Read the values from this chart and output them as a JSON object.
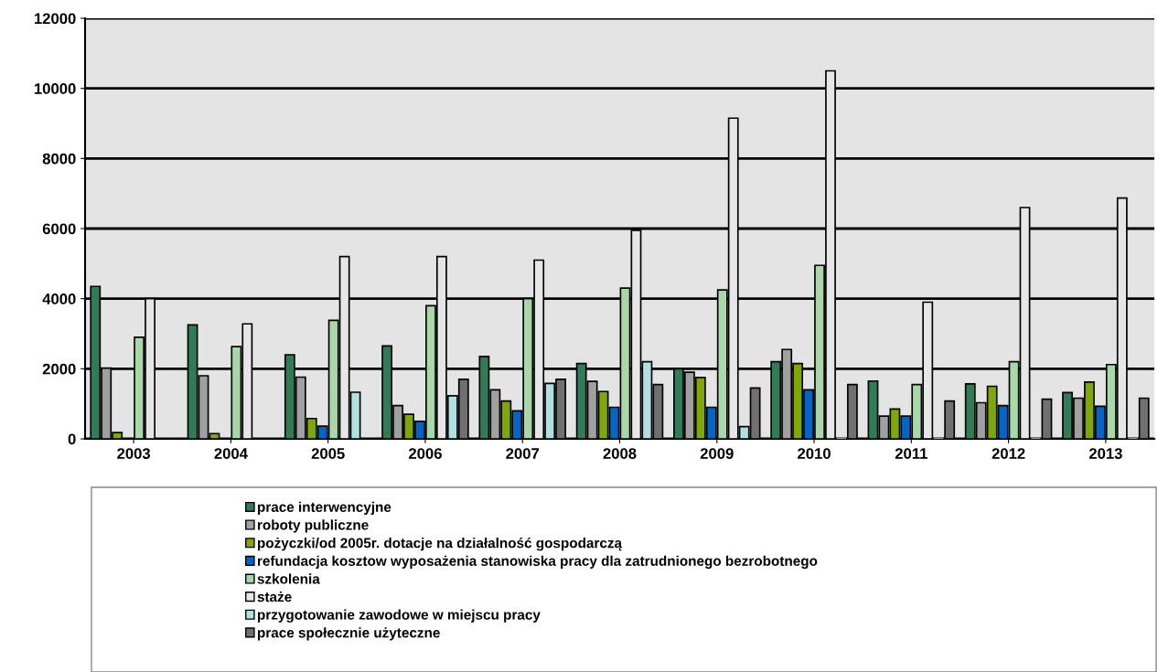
{
  "chart_data": {
    "type": "bar",
    "categories": [
      "2003",
      "2004",
      "2005",
      "2006",
      "2007",
      "2008",
      "2009",
      "2010",
      "2011",
      "2012",
      "2013"
    ],
    "series": [
      {
        "name": "prace interwencyjne",
        "color": "#2e7d57",
        "values": [
          4350,
          3250,
          2400,
          2650,
          2350,
          2150,
          2000,
          2200,
          1650,
          1570,
          1320
        ]
      },
      {
        "name": "roboty publiczne",
        "color": "#a0a0a0",
        "values": [
          2020,
          1800,
          1760,
          950,
          1400,
          1640,
          1900,
          2550,
          650,
          1030,
          1160
        ]
      },
      {
        "name": "pożyczki/od 2005r. dotacje na działalność gospodarczą",
        "color": "#7fa800",
        "values": [
          180,
          150,
          580,
          700,
          1080,
          1350,
          1750,
          2150,
          850,
          1500,
          1620
        ]
      },
      {
        "name": "refundacja kosztow wyposażenia stanowiska pracy dla zatrudnionego bezrobotnego",
        "color": "#0066cc",
        "values": [
          null,
          null,
          360,
          500,
          800,
          900,
          900,
          1400,
          650,
          950,
          930
        ]
      },
      {
        "name": "szkolenia",
        "color": "#a8d8a8",
        "values": [
          2900,
          2630,
          3380,
          3800,
          4000,
          4300,
          4250,
          4950,
          1550,
          2200,
          2120
        ]
      },
      {
        "name": "staże",
        "color": "#e6e6e6",
        "values": [
          4000,
          3280,
          5200,
          5200,
          5100,
          5950,
          9150,
          10500,
          3900,
          6600,
          6870
        ]
      },
      {
        "name": "przygotowanie zawodowe w miejscu pracy",
        "color": "#b0e0e0",
        "values": [
          null,
          null,
          1330,
          1230,
          1580,
          2200,
          350,
          0,
          0,
          0,
          0
        ]
      },
      {
        "name": "prace społecznie użyteczne",
        "color": "#707070",
        "values": [
          null,
          null,
          null,
          1700,
          1700,
          1550,
          1450,
          1550,
          1080,
          1130,
          1160
        ]
      }
    ],
    "ylim": [
      0,
      12000
    ],
    "yticks": [
      0,
      2000,
      4000,
      6000,
      8000,
      10000,
      12000
    ],
    "grid": "y",
    "legend": "bottom"
  }
}
